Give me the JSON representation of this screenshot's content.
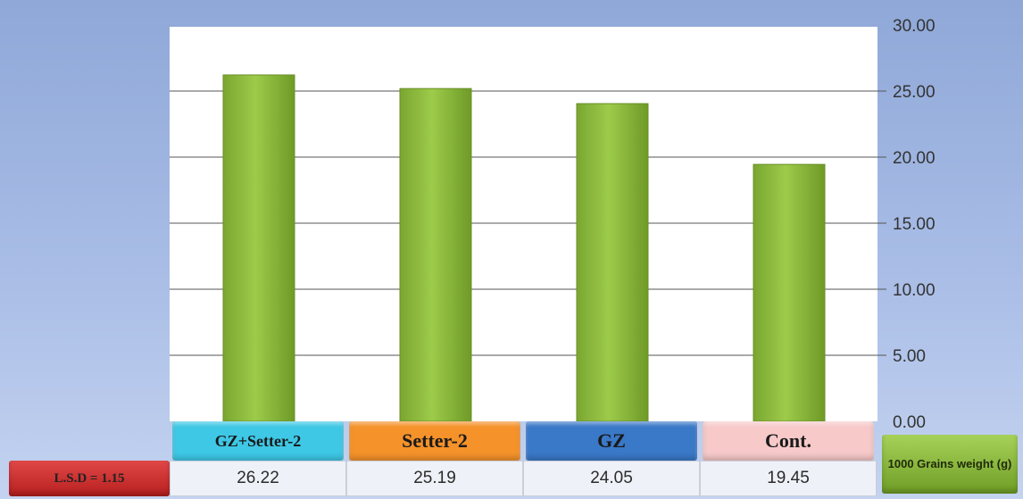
{
  "chart_data": {
    "type": "bar",
    "categories": [
      "GZ+Setter-2",
      "Setter-2",
      "GZ",
      "Cont."
    ],
    "values": [
      26.22,
      25.19,
      24.05,
      19.45
    ],
    "value_labels": [
      "26.22",
      "25.19",
      "24.05",
      "19.45"
    ],
    "ylim": [
      0,
      30
    ],
    "yticks": [
      "0.00",
      "5.00",
      "10.00",
      "15.00",
      "20.00",
      "25.00",
      "30.00"
    ],
    "y_axis_side": "right",
    "grid": true,
    "bar_color": "#8dba3c",
    "category_colors": [
      "#3ec8e6",
      "#f5922a",
      "#3a78c8",
      "#f7c9c9"
    ],
    "series": [
      {
        "name": "1000 Grains weight (g)",
        "values": [
          26.22,
          25.19,
          24.05,
          19.45
        ]
      }
    ],
    "legend": "bottom-right",
    "annotation": "L.S.D = 1.15"
  }
}
